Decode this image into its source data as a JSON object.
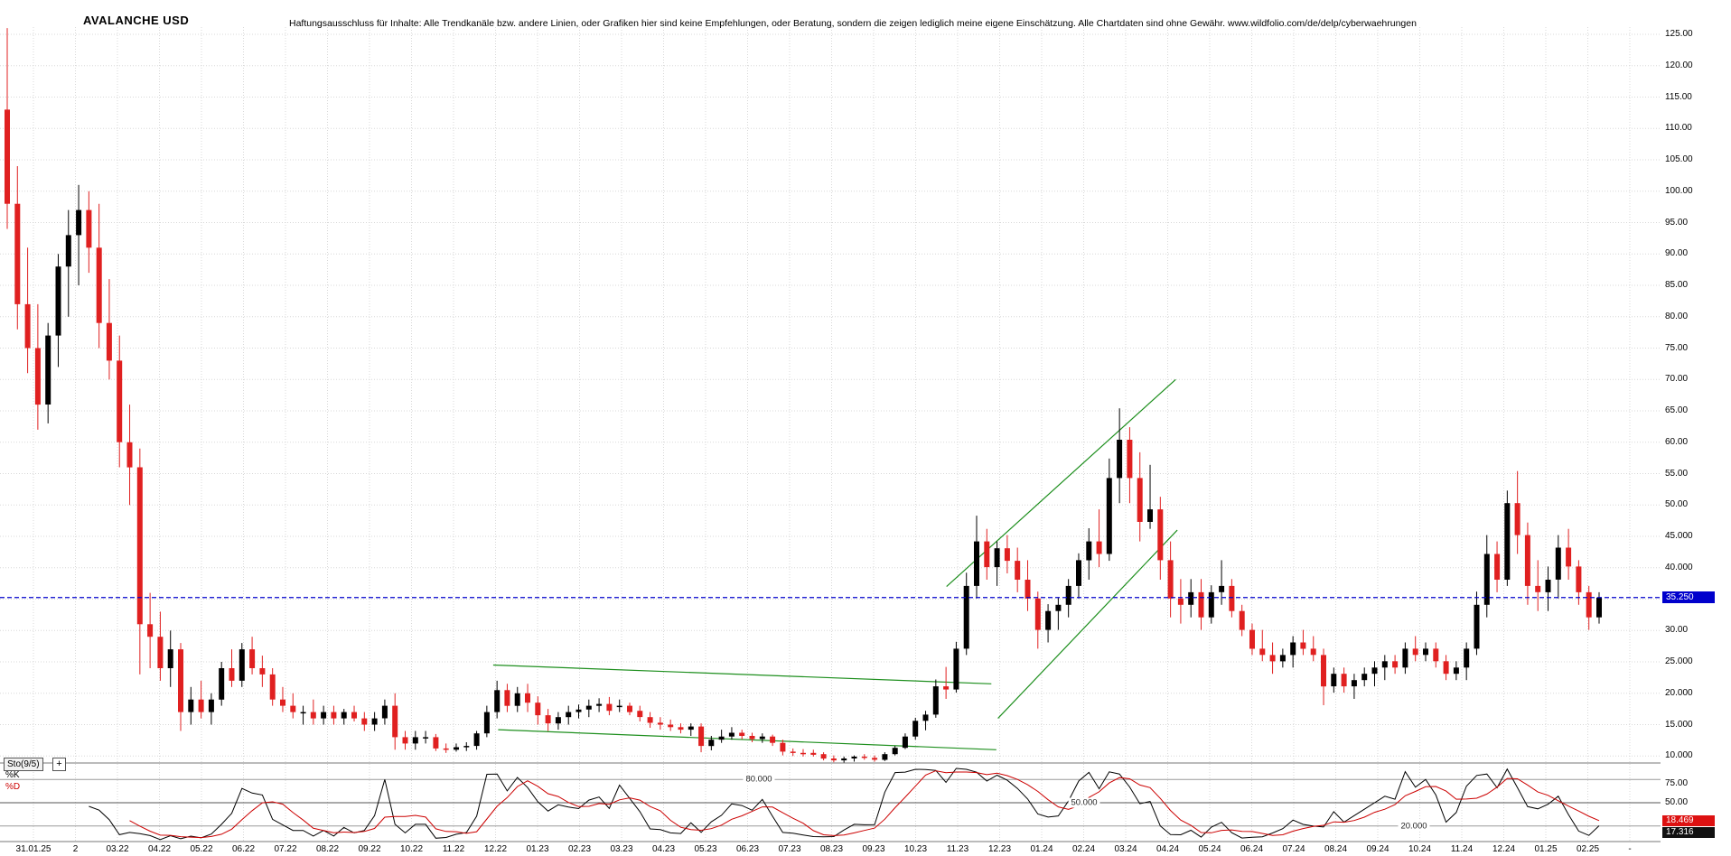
{
  "header": {
    "title": "AVALANCHE USD",
    "disclaimer": "Haftungsausschluss für Inhalte: Alle Trendkanäle bzw. andere Linien, oder Grafiken hier sind keine Empfehlungen, oder Beratung, sondern die zeigen lediglich meine eigene Einschätzung. Alle Chartdaten sind ohne Gewähr.  www.wildfolio.com/de/delp/cyberwaehrungen"
  },
  "colors": {
    "candle_up": "#000000",
    "candle_down": "#e02020",
    "grid": "#d8d8d8",
    "trend": "#1e8f1e",
    "current_price": "#0000cc",
    "sto_k": "#000000",
    "sto_d": "#cc0000",
    "k_badge_bg": "#dd1111",
    "d_badge_bg": "#111111"
  },
  "price_axis": {
    "labels": [
      {
        "text": "125.00",
        "value": 125
      },
      {
        "text": "120.00",
        "value": 120
      },
      {
        "text": "115.00",
        "value": 115
      },
      {
        "text": "110.00",
        "value": 110
      },
      {
        "text": "105.00",
        "value": 105
      },
      {
        "text": "100.00",
        "value": 100
      },
      {
        "text": "95.00",
        "value": 95
      },
      {
        "text": "90.00",
        "value": 90
      },
      {
        "text": "85.00",
        "value": 85
      },
      {
        "text": "80.00",
        "value": 80
      },
      {
        "text": "75.00",
        "value": 75
      },
      {
        "text": "70.00",
        "value": 70
      },
      {
        "text": "65.00",
        "value": 65
      },
      {
        "text": "60.00",
        "value": 60
      },
      {
        "text": "55.00",
        "value": 55
      },
      {
        "text": "50.00",
        "value": 50
      },
      {
        "text": "45.000",
        "value": 45
      },
      {
        "text": "40.000",
        "value": 40
      },
      {
        "text": "30.00",
        "value": 30
      },
      {
        "text": "25.000",
        "value": 25
      },
      {
        "text": "20.000",
        "value": 20
      },
      {
        "text": "15.000",
        "value": 15
      },
      {
        "text": "10.000",
        "value": 10
      }
    ],
    "current_price_badge": {
      "text": "35.250",
      "value": 35.25,
      "color": "#0000cc"
    }
  },
  "x_axis": {
    "labels": [
      "31.01.25",
      "2",
      "03.22",
      "04.22",
      "05.22",
      "06.22",
      "07.22",
      "08.22",
      "09.22",
      "10.22",
      "11.22",
      "12.22",
      "01.23",
      "02.23",
      "03.23",
      "04.23",
      "05.23",
      "06.23",
      "07.23",
      "08.23",
      "09.23",
      "10.23",
      "11.23",
      "12.23",
      "01.24",
      "02.24",
      "03.24",
      "04.24",
      "05.24",
      "06.24",
      "07.24",
      "08.24",
      "09.24",
      "10.24",
      "11.24",
      "12.24",
      "01.25",
      "02.25",
      "-"
    ]
  },
  "indicator_panel": {
    "name_label": "Sto(9/5)",
    "plus_icon": "+",
    "k_label": "%K",
    "d_label": "%D",
    "levels": [
      {
        "text": "80.000",
        "value": 80
      },
      {
        "text": "50.000",
        "value": 50
      },
      {
        "text": "20.000",
        "value": 20
      }
    ],
    "axis_labels": [
      {
        "text": "75.00",
        "value": 75
      },
      {
        "text": "50.00",
        "value": 50
      }
    ],
    "k_badge": {
      "text": "18.469",
      "value": 18.469
    },
    "d_badge": {
      "text": "17.316",
      "value": 17.316
    }
  },
  "chart_data": {
    "type": "candlestick",
    "title": "AVALANCHE USD",
    "x_tick_labels": [
      "31.01.25",
      "2",
      "03.22",
      "04.22",
      "05.22",
      "06.22",
      "07.22",
      "08.22",
      "09.22",
      "10.22",
      "11.22",
      "12.22",
      "01.23",
      "02.23",
      "03.23",
      "04.23",
      "05.23",
      "06.23",
      "07.23",
      "08.23",
      "09.23",
      "10.23",
      "11.23",
      "12.23",
      "01.24",
      "02.24",
      "03.24",
      "04.24",
      "05.24",
      "06.24",
      "07.24",
      "08.24",
      "09.24",
      "10.24",
      "11.24",
      "12.24",
      "01.25",
      "02.25",
      "-"
    ],
    "ylim": [
      8,
      127
    ],
    "price_gridline_step": 5,
    "grid": true,
    "candles": [
      [
        113,
        126,
        94,
        98
      ],
      [
        98,
        104,
        78,
        82
      ],
      [
        82,
        91,
        71,
        75
      ],
      [
        75,
        82,
        62,
        66
      ],
      [
        66,
        79,
        63,
        77
      ],
      [
        77,
        90,
        72,
        88
      ],
      [
        88,
        97,
        80,
        93
      ],
      [
        93,
        101,
        85,
        97
      ],
      [
        97,
        100,
        87,
        91
      ],
      [
        91,
        98,
        75,
        79
      ],
      [
        79,
        86,
        70,
        73
      ],
      [
        73,
        77,
        56,
        60
      ],
      [
        60,
        66,
        50,
        56
      ],
      [
        56,
        59,
        23,
        31
      ],
      [
        31,
        36,
        24,
        29
      ],
      [
        29,
        33,
        22,
        24
      ],
      [
        24,
        30,
        21,
        27
      ],
      [
        27,
        28,
        14,
        17
      ],
      [
        17,
        21,
        15,
        19
      ],
      [
        19,
        22,
        16,
        17
      ],
      [
        17,
        20,
        15,
        19
      ],
      [
        19,
        25,
        18,
        24
      ],
      [
        24,
        27,
        21,
        22
      ],
      [
        22,
        28,
        21,
        27
      ],
      [
        27,
        29,
        23,
        24
      ],
      [
        24,
        26,
        21,
        23
      ],
      [
        23,
        24,
        18,
        19
      ],
      [
        19,
        21,
        17,
        18
      ],
      [
        18,
        20,
        16,
        17
      ],
      [
        17,
        18,
        15,
        17
      ],
      [
        17,
        19,
        15,
        16
      ],
      [
        16,
        18,
        15,
        17
      ],
      [
        17,
        18,
        15,
        16
      ],
      [
        16,
        17.5,
        15,
        17
      ],
      [
        17,
        18,
        15.5,
        16
      ],
      [
        16,
        17,
        14,
        15
      ],
      [
        15,
        17,
        14,
        16
      ],
      [
        16,
        19,
        15,
        18
      ],
      [
        18,
        20,
        11,
        13
      ],
      [
        13,
        14,
        11,
        12
      ],
      [
        12,
        14,
        11,
        13
      ],
      [
        13,
        14,
        12,
        13
      ],
      [
        13,
        13.5,
        10.8,
        11.2
      ],
      [
        11.2,
        12,
        10.5,
        11
      ],
      [
        11,
        12,
        10.7,
        11.4
      ],
      [
        11.4,
        12.2,
        10.8,
        11.6
      ],
      [
        11.6,
        14,
        11,
        13.6
      ],
      [
        13.6,
        18,
        13,
        17
      ],
      [
        17,
        22,
        16,
        20.5
      ],
      [
        20.5,
        21.5,
        17,
        18
      ],
      [
        18,
        21,
        17,
        20
      ],
      [
        20,
        21.5,
        17,
        18.5
      ],
      [
        18.5,
        19.5,
        15,
        16.5
      ],
      [
        16.5,
        17.5,
        14,
        15.2
      ],
      [
        15.2,
        17,
        14.2,
        16.2
      ],
      [
        16.2,
        18,
        15,
        17
      ],
      [
        17,
        18.2,
        16,
        17.4
      ],
      [
        17.4,
        19,
        16.2,
        18
      ],
      [
        18,
        19.2,
        17,
        18.3
      ],
      [
        18.3,
        19.4,
        16.5,
        17.2
      ],
      [
        18,
        19,
        17,
        18
      ],
      [
        18,
        18.5,
        16.5,
        17
      ],
      [
        17.2,
        18,
        15.5,
        16.2
      ],
      [
        16.2,
        17,
        14.5,
        15.3
      ],
      [
        15.3,
        16.2,
        14.2,
        15
      ],
      [
        15,
        15.8,
        14,
        14.6
      ],
      [
        14.6,
        15.2,
        13.6,
        14.2
      ],
      [
        14.2,
        15.2,
        13.2,
        14.7
      ],
      [
        14.7,
        15.2,
        10.6,
        11.6
      ],
      [
        11.6,
        13.2,
        10.9,
        12.6
      ],
      [
        12.6,
        14.2,
        12.1,
        13.1
      ],
      [
        13.1,
        14.6,
        12.6,
        13.7
      ],
      [
        13.7,
        14.2,
        12.7,
        13.2
      ],
      [
        13.2,
        13.7,
        12.2,
        12.7
      ],
      [
        12.7,
        13.6,
        12.1,
        13.1
      ],
      [
        13.1,
        13.4,
        11.6,
        12.1
      ],
      [
        12.1,
        12.6,
        10.1,
        10.7
      ],
      [
        10.7,
        11.2,
        10,
        10.5
      ],
      [
        10.5,
        11.1,
        9.9,
        10.3
      ],
      [
        10.5,
        11,
        9.9,
        10.2
      ],
      [
        10.3,
        10.6,
        9.3,
        9.6
      ],
      [
        9.6,
        10.1,
        9,
        9.3
      ],
      [
        9.3,
        9.9,
        8.9,
        9.6
      ],
      [
        9.6,
        10.1,
        9.1,
        9.9
      ],
      [
        9.9,
        10.3,
        9.4,
        9.7
      ],
      [
        9.7,
        10.1,
        9.1,
        9.4
      ],
      [
        9.4,
        10.6,
        9.2,
        10.3
      ],
      [
        10.3,
        11.6,
        10.1,
        11.3
      ],
      [
        11.3,
        13.6,
        11.1,
        13.1
      ],
      [
        13.1,
        16.1,
        12.6,
        15.6
      ],
      [
        15.6,
        17.2,
        14.1,
        16.6
      ],
      [
        16.6,
        22.2,
        16.1,
        21.1
      ],
      [
        21.1,
        24.2,
        19.1,
        20.6
      ],
      [
        20.6,
        28.2,
        20.1,
        27.1
      ],
      [
        27.1,
        39.2,
        26.1,
        37.1
      ],
      [
        37.1,
        48.3,
        35.1,
        44.2
      ],
      [
        44.2,
        46.2,
        38.1,
        40.1
      ],
      [
        40.1,
        44.2,
        37.1,
        43.1
      ],
      [
        43.1,
        45.2,
        39.1,
        41.1
      ],
      [
        41.1,
        43.2,
        36.1,
        38.1
      ],
      [
        38.1,
        41.2,
        33.1,
        35.1
      ],
      [
        35.1,
        36.2,
        27.1,
        30.1
      ],
      [
        30.1,
        34.2,
        28.1,
        33.1
      ],
      [
        33.1,
        35.2,
        30.1,
        34.1
      ],
      [
        34.1,
        38.2,
        32.1,
        37.1
      ],
      [
        37.1,
        42.3,
        35.1,
        41.2
      ],
      [
        41.2,
        46.3,
        38.1,
        44.2
      ],
      [
        44.2,
        49.3,
        40.1,
        42.2
      ],
      [
        42.2,
        57.4,
        41.1,
        54.3
      ],
      [
        54.3,
        65.4,
        50.3,
        60.4
      ],
      [
        60.4,
        62.4,
        50.3,
        54.3
      ],
      [
        54.3,
        58.4,
        44.2,
        47.3
      ],
      [
        47.3,
        56.4,
        46.2,
        49.3
      ],
      [
        49.3,
        51.3,
        38.1,
        41.2
      ],
      [
        41.2,
        44.2,
        32.1,
        35.1
      ],
      [
        35.1,
        38.2,
        31.1,
        34.1
      ],
      [
        34.1,
        38.2,
        32.1,
        36.1
      ],
      [
        36.1,
        38.2,
        30.1,
        32.1
      ],
      [
        32.1,
        37.2,
        31.1,
        36.1
      ],
      [
        36.1,
        41.2,
        34.1,
        37.1
      ],
      [
        37.1,
        38.2,
        32.1,
        33.1
      ],
      [
        33.1,
        34.1,
        29.1,
        30.1
      ],
      [
        30.1,
        31.1,
        26.1,
        27.1
      ],
      [
        27.1,
        30.1,
        25.1,
        26.1
      ],
      [
        26.1,
        28.1,
        23.1,
        25.1
      ],
      [
        25.1,
        27.1,
        24.1,
        26.1
      ],
      [
        26.1,
        29.1,
        24.1,
        28.1
      ],
      [
        28.1,
        30.1,
        26.1,
        27.1
      ],
      [
        27.1,
        29.1,
        25.1,
        26.1
      ],
      [
        26.1,
        27.1,
        18.1,
        21.1
      ],
      [
        21.1,
        24.1,
        20.1,
        23.1
      ],
      [
        23.1,
        24.1,
        20.1,
        21.1
      ],
      [
        21.1,
        23.1,
        19.1,
        22.1
      ],
      [
        22.1,
        24.1,
        21.1,
        23.1
      ],
      [
        23.1,
        25.1,
        21.1,
        24.1
      ],
      [
        24.1,
        26.1,
        22.1,
        25.1
      ],
      [
        25.1,
        26.1,
        23.1,
        24.1
      ],
      [
        24.1,
        28.1,
        23.1,
        27.1
      ],
      [
        27.1,
        29.1,
        25.1,
        26.1
      ],
      [
        26.1,
        28.1,
        25.1,
        27.1
      ],
      [
        27.1,
        28.1,
        24.1,
        25.1
      ],
      [
        25.1,
        26.1,
        22.1,
        23.1
      ],
      [
        23.1,
        25.1,
        22.1,
        24.1
      ],
      [
        24.1,
        28.1,
        22.1,
        27.1
      ],
      [
        27.1,
        36.2,
        26.1,
        34.1
      ],
      [
        34.1,
        45.2,
        32.1,
        42.2
      ],
      [
        42.2,
        44.2,
        36.1,
        38.1
      ],
      [
        38.1,
        52.3,
        37.1,
        50.3
      ],
      [
        50.3,
        55.4,
        42.2,
        45.2
      ],
      [
        45.2,
        47.2,
        34.1,
        37.1
      ],
      [
        37.1,
        41.2,
        33.1,
        36.1
      ],
      [
        36.1,
        40.2,
        33.1,
        38.1
      ],
      [
        38.1,
        45.2,
        35.1,
        43.2
      ],
      [
        43.2,
        46.2,
        38.1,
        40.2
      ],
      [
        40.2,
        41.2,
        34.1,
        36.1
      ],
      [
        36.1,
        37.1,
        30.1,
        32.1
      ],
      [
        32.1,
        36.1,
        31.1,
        35.25
      ]
    ],
    "horizontal_line": {
      "price": 35.25,
      "style": "dashed",
      "color": "#0000cc",
      "label": "35.250"
    },
    "trendlines": [
      {
        "x1_frac": 0.297,
        "price1": 24.5,
        "x2_frac": 0.597,
        "price2": 21.5,
        "color": "#1e8f1e"
      },
      {
        "x1_frac": 0.3,
        "price1": 14.2,
        "x2_frac": 0.6,
        "price2": 11.0,
        "color": "#1e8f1e"
      },
      {
        "x1_frac": 0.57,
        "price1": 37.0,
        "x2_frac": 0.708,
        "price2": 70.0,
        "color": "#1e8f1e"
      },
      {
        "x1_frac": 0.601,
        "price1": 16.0,
        "x2_frac": 0.709,
        "price2": 46.0,
        "color": "#1e8f1e"
      }
    ],
    "indicator": {
      "type": "stochastic",
      "label": "Sto(9/5)",
      "k_period": 9,
      "d_period": 5,
      "levels": [
        80,
        50,
        20
      ],
      "last_k": 18.469,
      "last_d": 17.316
    }
  }
}
